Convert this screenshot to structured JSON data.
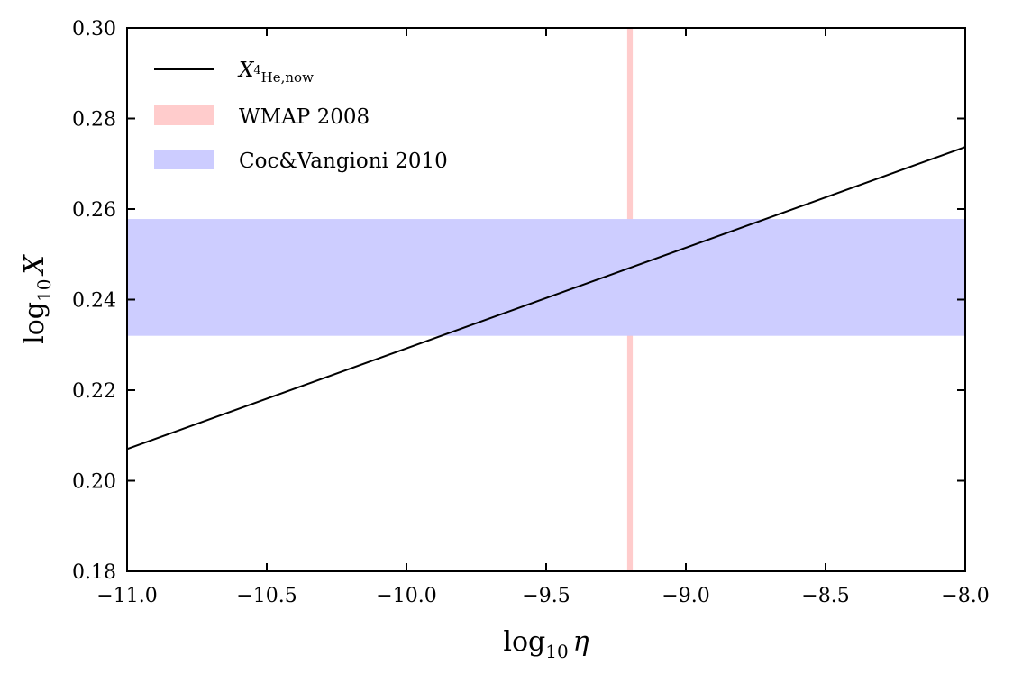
{
  "chart_data": {
    "type": "line",
    "xlim": [
      -11.0,
      -8.0
    ],
    "ylim": [
      0.18,
      0.3
    ],
    "x_ticks": [
      -11.0,
      -10.5,
      -10.0,
      -9.5,
      -9.0,
      -8.5,
      -8.0
    ],
    "x_tick_labels": [
      "−11.0",
      "−10.5",
      "−10.0",
      "−9.5",
      "−9.0",
      "−8.5",
      "−8.0"
    ],
    "y_ticks": [
      0.18,
      0.2,
      0.22,
      0.24,
      0.26,
      0.28,
      0.3
    ],
    "y_tick_labels": [
      "0.18",
      "0.20",
      "0.22",
      "0.24",
      "0.26",
      "0.28",
      "0.30"
    ],
    "xlabel": {
      "prefix": "log",
      "subscript": "10",
      "symbol": "η"
    },
    "ylabel": {
      "prefix": "log",
      "subscript": "10",
      "symbol": "X"
    },
    "series": [
      {
        "name": {
          "main": "X",
          "sup": "4",
          "sub": "He,now"
        },
        "kind": "line",
        "color": "#000000",
        "x": [
          -11.0,
          -8.0
        ],
        "y": [
          0.207,
          0.2737
        ]
      }
    ],
    "bands": [
      {
        "name": "WMAP 2008",
        "orientation": "vertical",
        "range": [
          -9.21,
          -9.19
        ],
        "color": "#ffcccc"
      },
      {
        "name": "Coc&Vangioni 2010",
        "orientation": "horizontal",
        "range": [
          0.232,
          0.2578
        ],
        "color": "#ccccff"
      }
    ],
    "grid": false,
    "legend_position": "top-left"
  }
}
